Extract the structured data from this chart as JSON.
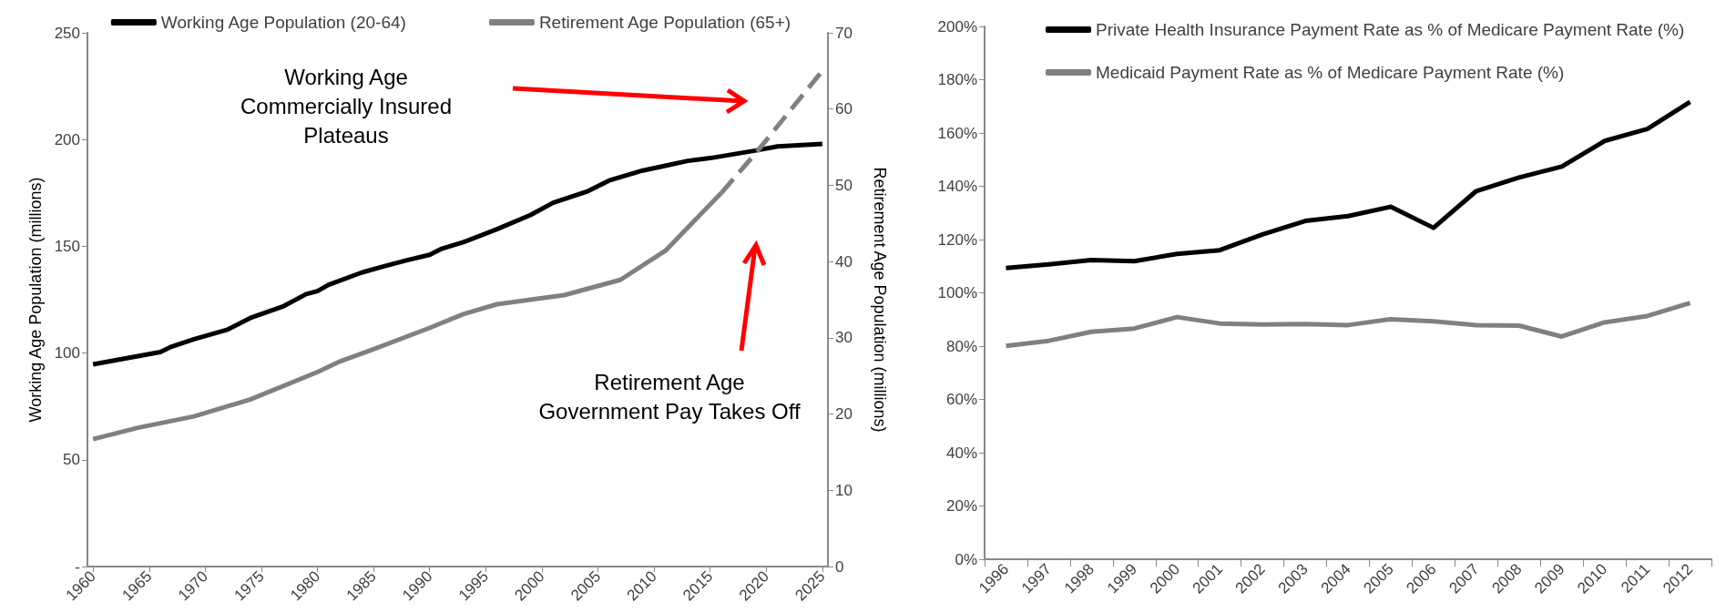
{
  "chart_data": [
    {
      "type": "line",
      "ylabel": "Working Age Population (millions)",
      "y2label": "Retirement Age Population (millions)",
      "xlim": [
        1959.5,
        2025.5
      ],
      "xticks": [
        1960,
        1965,
        1970,
        1975,
        1980,
        1985,
        1990,
        1995,
        2000,
        2005,
        2010,
        2015,
        2020,
        2025
      ],
      "ylim": [
        0,
        250
      ],
      "yticks": [
        {
          "value": 0,
          "label": "-"
        },
        50,
        100,
        150,
        200,
        250
      ],
      "y2lim": [
        0,
        70
      ],
      "y2ticks": [
        0,
        10,
        20,
        30,
        40,
        50,
        60,
        70
      ],
      "legend": "top",
      "grid": false,
      "annotations": [
        "Working Age\nCommercially Insured\nPlateaus",
        "Retirement Age\nGovernment Pay Takes Off"
      ],
      "series": [
        {
          "name": "Working Age Population (20-64)",
          "color": "#000000",
          "line_style": "solid",
          "x": [
            1960,
            1962,
            1966,
            1967,
            1969,
            1972,
            1974,
            1977,
            1979,
            1980,
            1981,
            1984,
            1986,
            1988,
            1990,
            1991,
            1993,
            1996,
            1999,
            2001,
            2004,
            2006,
            2009,
            2011,
            2013,
            2015,
            2019,
            2021,
            2025
          ],
          "values": [
            94.7,
            96.6,
            100.5,
            103,
            106.5,
            111,
            116.4,
            122,
            127.6,
            129,
            132,
            137.8,
            140.7,
            143.5,
            146,
            148.7,
            151.9,
            158,
            164.7,
            170.4,
            175.6,
            180.8,
            185.5,
            187.7,
            190,
            191.3,
            194.8,
            196.8,
            198
          ]
        },
        {
          "name": "Retirement Age Population (65+)",
          "color": "#808080",
          "axis": "y2",
          "line_style": "solid",
          "x": [
            1960,
            1964,
            1969,
            1974,
            1980,
            1982,
            1985,
            1990,
            1993,
            1996,
            2002,
            2007,
            2011,
            2016
          ],
          "values": [
            16.7,
            18.2,
            19.7,
            21.9,
            25.5,
            26.9,
            28.5,
            31.3,
            33.1,
            34.4,
            35.6,
            37.6,
            41.4,
            49.0
          ]
        },
        {
          "color": "#808080",
          "axis": "y2",
          "line_style": "dashed",
          "x": [
            2016,
            2019,
            2025
          ],
          "values": [
            49.0,
            54.1,
            65
          ]
        }
      ]
    },
    {
      "type": "line",
      "categories": [
        "1996",
        "1997",
        "1998",
        "1999",
        "2000",
        "2001",
        "2002",
        "2003",
        "2004",
        "2005",
        "2006",
        "2007",
        "2008",
        "2009",
        "2010",
        "2011",
        "2012"
      ],
      "ylim": [
        0,
        200
      ],
      "yticks": [
        {
          "value": 0,
          "label": "0%"
        },
        {
          "value": 20,
          "label": "20%"
        },
        {
          "value": 40,
          "label": "40%"
        },
        {
          "value": 60,
          "label": "60%"
        },
        {
          "value": 80,
          "label": "80%"
        },
        {
          "value": 100,
          "label": "100%"
        },
        {
          "value": 120,
          "label": "120%"
        },
        {
          "value": 140,
          "label": "140%"
        },
        {
          "value": 160,
          "label": "160%"
        },
        {
          "value": 180,
          "label": "180%"
        },
        {
          "value": 200,
          "label": "200%"
        }
      ],
      "legend": "top left",
      "grid": false,
      "series": [
        {
          "name": "Private Health Insurance Payment Rate as % of Medicare Payment Rate (%)",
          "color": "#000000",
          "values": [
            109.3,
            110.7,
            112.3,
            111.9,
            114.6,
            116,
            121.9,
            127,
            128.8,
            132.3,
            124.4,
            138.2,
            143.3,
            147.4,
            157,
            161.5,
            171.7
          ]
        },
        {
          "name": "Medicaid Payment Rate as % of Medicare Payment Rate (%)",
          "color": "#808080",
          "values": [
            80.1,
            82,
            85.4,
            86.6,
            90.9,
            88.5,
            88.1,
            88.3,
            87.9,
            90.1,
            89.3,
            87.9,
            87.7,
            83.6,
            88.9,
            91.3,
            96.2
          ]
        }
      ]
    }
  ]
}
